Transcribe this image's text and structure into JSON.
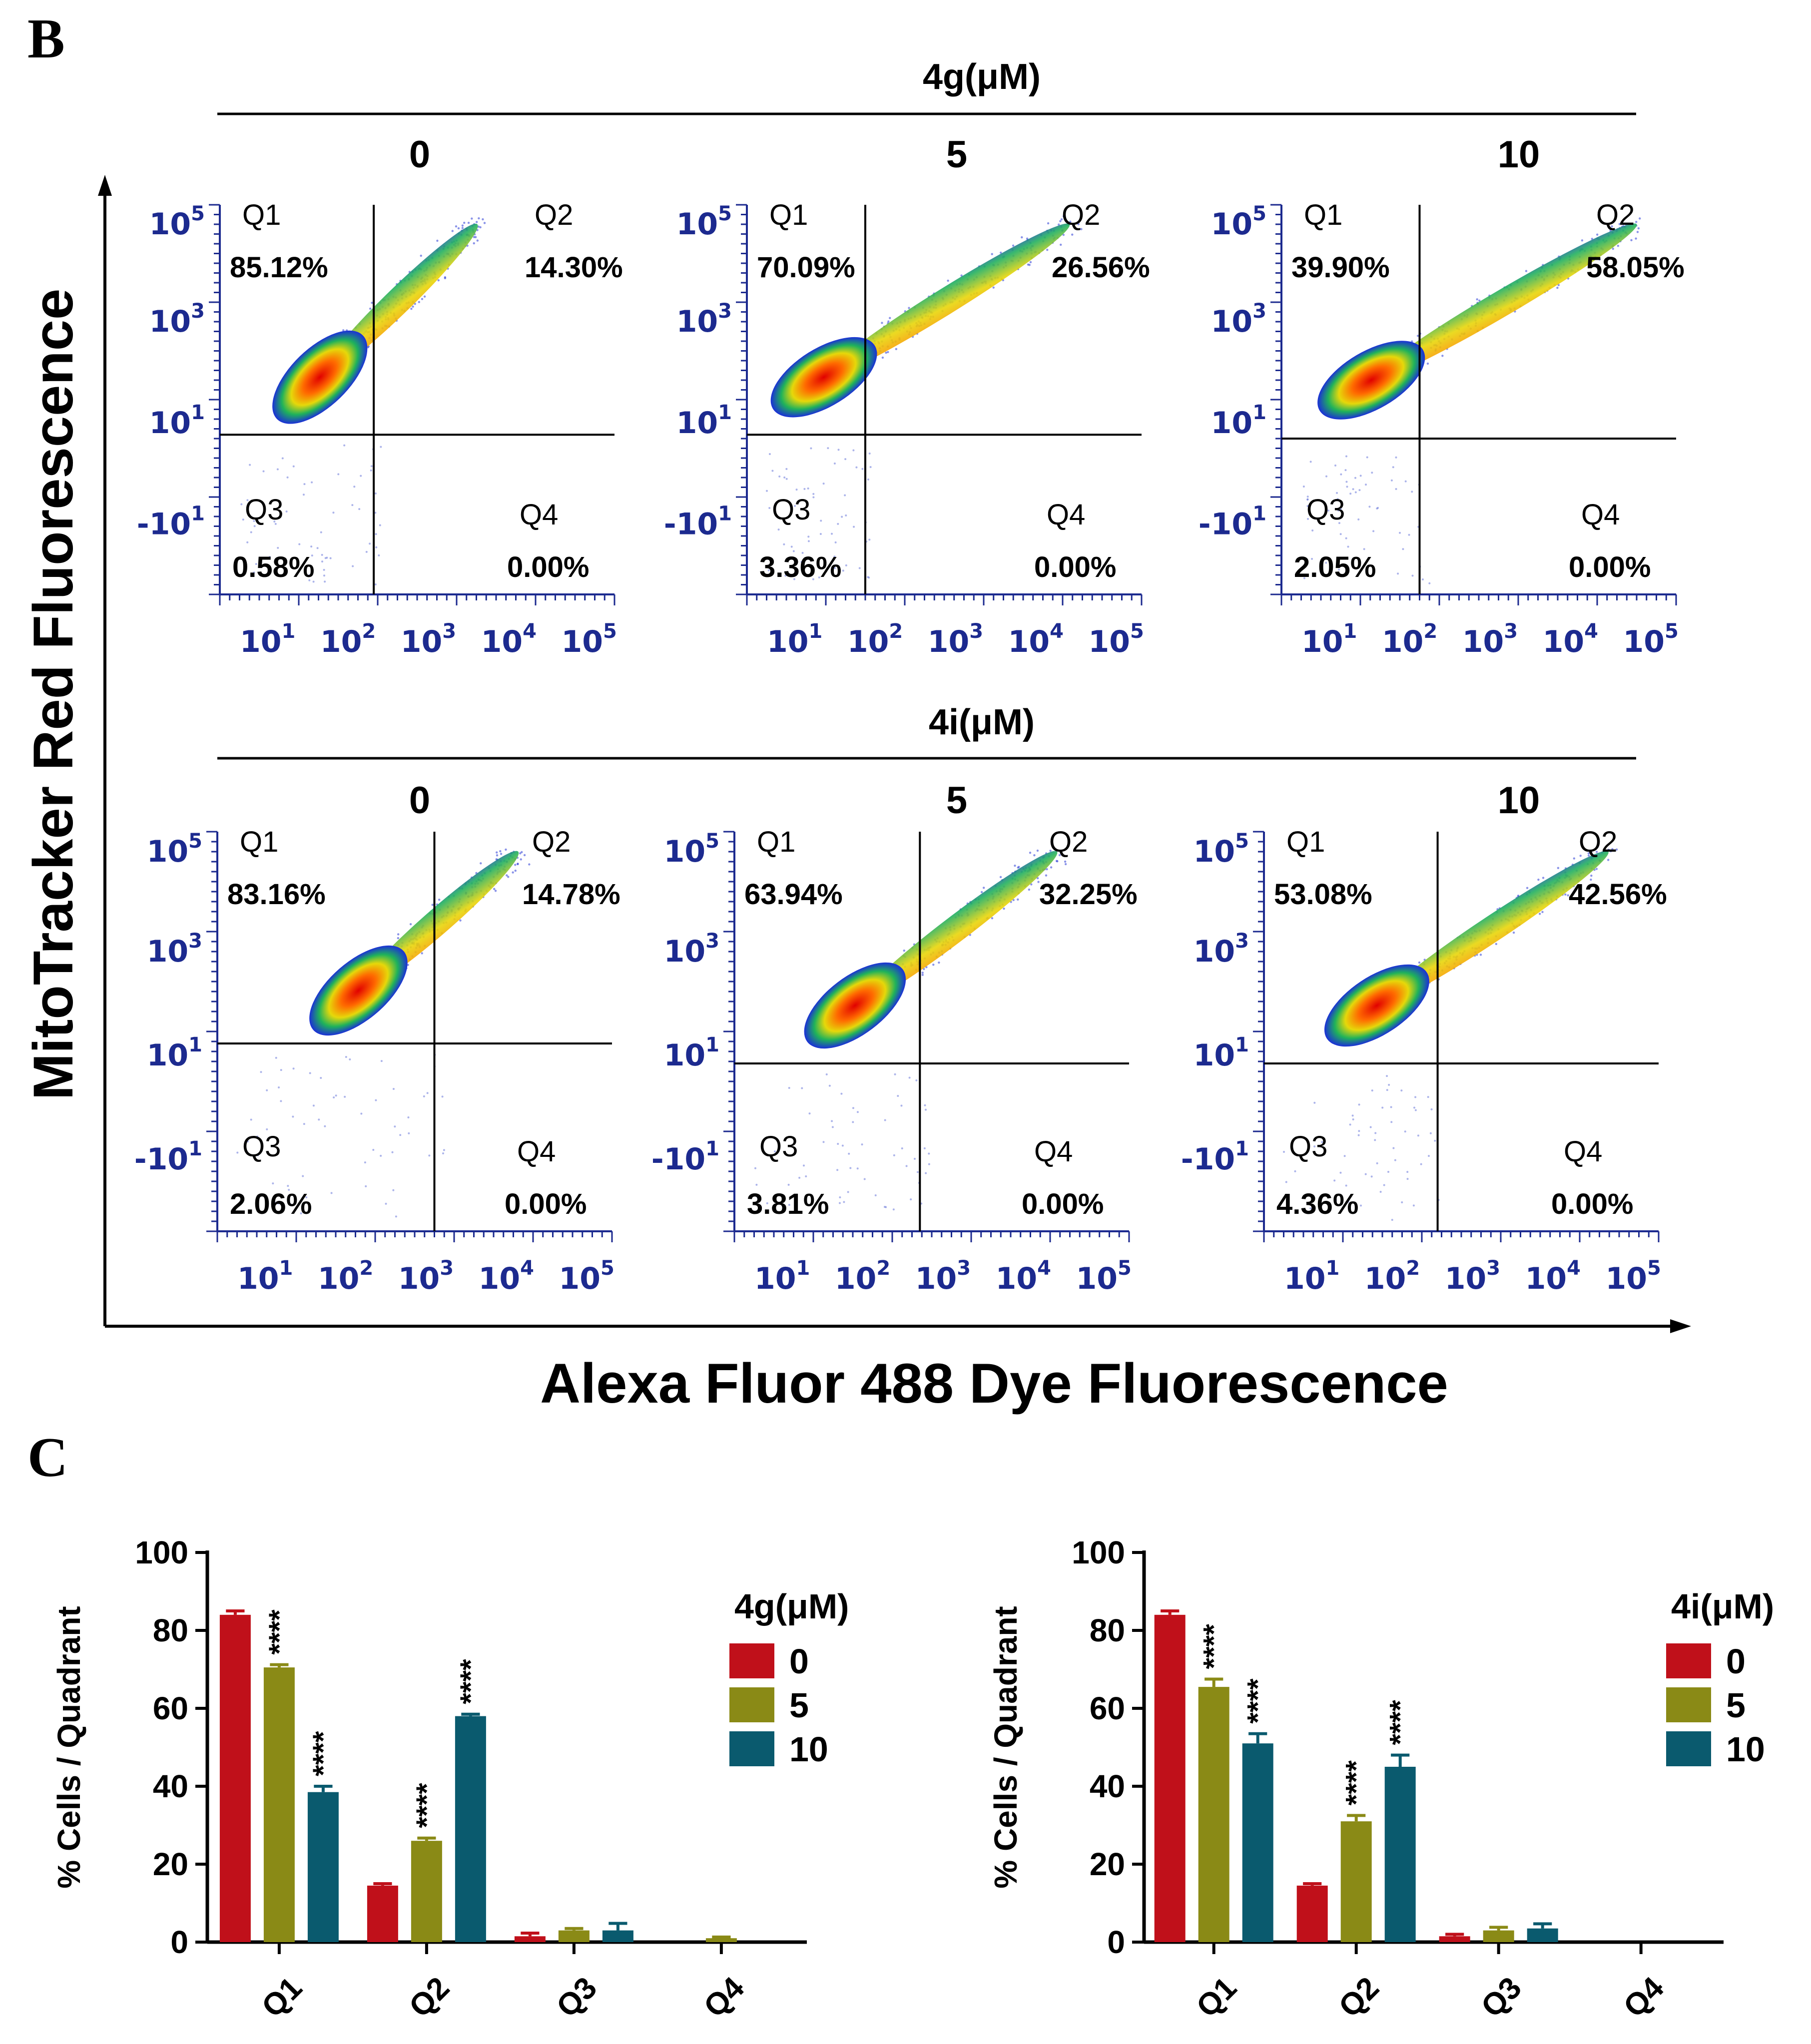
{
  "panel_b_label": "B",
  "panel_c_label": "C",
  "y_axis_label": "MitoTracker Red Fluorescence",
  "x_axis_label": "Alexa Fluor 488 Dye Fluorescence",
  "tick_labels": {
    "y": [
      {
        "base": "10",
        "exp": "5"
      },
      {
        "base": "10",
        "exp": "3"
      },
      {
        "base": "10",
        "exp": "1"
      },
      {
        "base": "-10",
        "exp": "1"
      }
    ],
    "x": [
      {
        "base": "10",
        "exp": "1"
      },
      {
        "base": "10",
        "exp": "2"
      },
      {
        "base": "10",
        "exp": "3"
      },
      {
        "base": "10",
        "exp": "4"
      },
      {
        "base": "10",
        "exp": "5"
      }
    ]
  },
  "colors": {
    "dose0": "#c0101a",
    "dose5": "#8a8a16",
    "dose10": "#0a5a6e",
    "tick": "#1c2a8f"
  },
  "chart_data": [
    {
      "type": "scatter",
      "group": "4g(μM)",
      "plots": [
        {
          "dose": "0",
          "quadrants": {
            "Q1": "85.12%",
            "Q2": "14.30%",
            "Q3": "0.58%",
            "Q4": "0.00%"
          }
        },
        {
          "dose": "5",
          "quadrants": {
            "Q1": "70.09%",
            "Q2": "26.56%",
            "Q3": "3.36%",
            "Q4": "0.00%"
          }
        },
        {
          "dose": "10",
          "quadrants": {
            "Q1": "39.90%",
            "Q2": "58.05%",
            "Q3": "2.05%",
            "Q4": "0.00%"
          }
        }
      ]
    },
    {
      "type": "scatter",
      "group": "4i(μM)",
      "plots": [
        {
          "dose": "0",
          "quadrants": {
            "Q1": "83.16%",
            "Q2": "14.78%",
            "Q3": "2.06%",
            "Q4": "0.00%"
          }
        },
        {
          "dose": "5",
          "quadrants": {
            "Q1": "63.94%",
            "Q2": "32.25%",
            "Q3": "3.81%",
            "Q4": "0.00%"
          }
        },
        {
          "dose": "10",
          "quadrants": {
            "Q1": "53.08%",
            "Q2": "42.56%",
            "Q3": "4.36%",
            "Q4": "0.00%"
          }
        }
      ]
    },
    {
      "type": "bar",
      "ylabel": "% Cells / Quadrant",
      "ylim": [
        0,
        100
      ],
      "yticks": [
        "0",
        "20",
        "40",
        "60",
        "80",
        "100"
      ],
      "categories": [
        "Q1",
        "Q2",
        "Q3",
        "Q4"
      ],
      "legend_title": "4g(μM)",
      "series": [
        {
          "name": "0",
          "values": [
            84,
            14.5,
            1.5,
            0
          ],
          "errors": [
            1,
            0.5,
            0.8,
            0
          ]
        },
        {
          "name": "5",
          "values": [
            70.5,
            26,
            3,
            1
          ],
          "errors": [
            0.7,
            0.7,
            0.5,
            0.3
          ]
        },
        {
          "name": "10",
          "values": [
            38.5,
            58,
            3,
            0
          ],
          "errors": [
            1.5,
            0.5,
            1.8,
            0
          ]
        }
      ],
      "significance": [
        [
          "",
          "",
          ""
        ],
        [
          "****",
          "****",
          ""
        ],
        [
          "****",
          "****",
          ""
        ],
        [
          "",
          "",
          ""
        ]
      ]
    },
    {
      "type": "bar",
      "ylabel": "% Cells / Quadrant",
      "ylim": [
        0,
        100
      ],
      "yticks": [
        "0",
        "20",
        "40",
        "60",
        "80",
        "100"
      ],
      "categories": [
        "Q1",
        "Q2",
        "Q3",
        "Q4"
      ],
      "legend_title": "4i(μM)",
      "series": [
        {
          "name": "0",
          "values": [
            84,
            14.5,
            1.5,
            0
          ],
          "errors": [
            1,
            0.5,
            0.5,
            0
          ]
        },
        {
          "name": "5",
          "values": [
            65.5,
            31,
            3,
            0
          ],
          "errors": [
            2,
            1.5,
            0.8,
            0
          ]
        },
        {
          "name": "10",
          "values": [
            51,
            45,
            3.5,
            0
          ],
          "errors": [
            2.5,
            3,
            1.2,
            0
          ]
        }
      ],
      "significance": [
        [
          "",
          "",
          ""
        ],
        [
          "****",
          "****",
          ""
        ],
        [
          "****",
          "****",
          ""
        ],
        [
          "",
          "",
          ""
        ]
      ]
    }
  ]
}
